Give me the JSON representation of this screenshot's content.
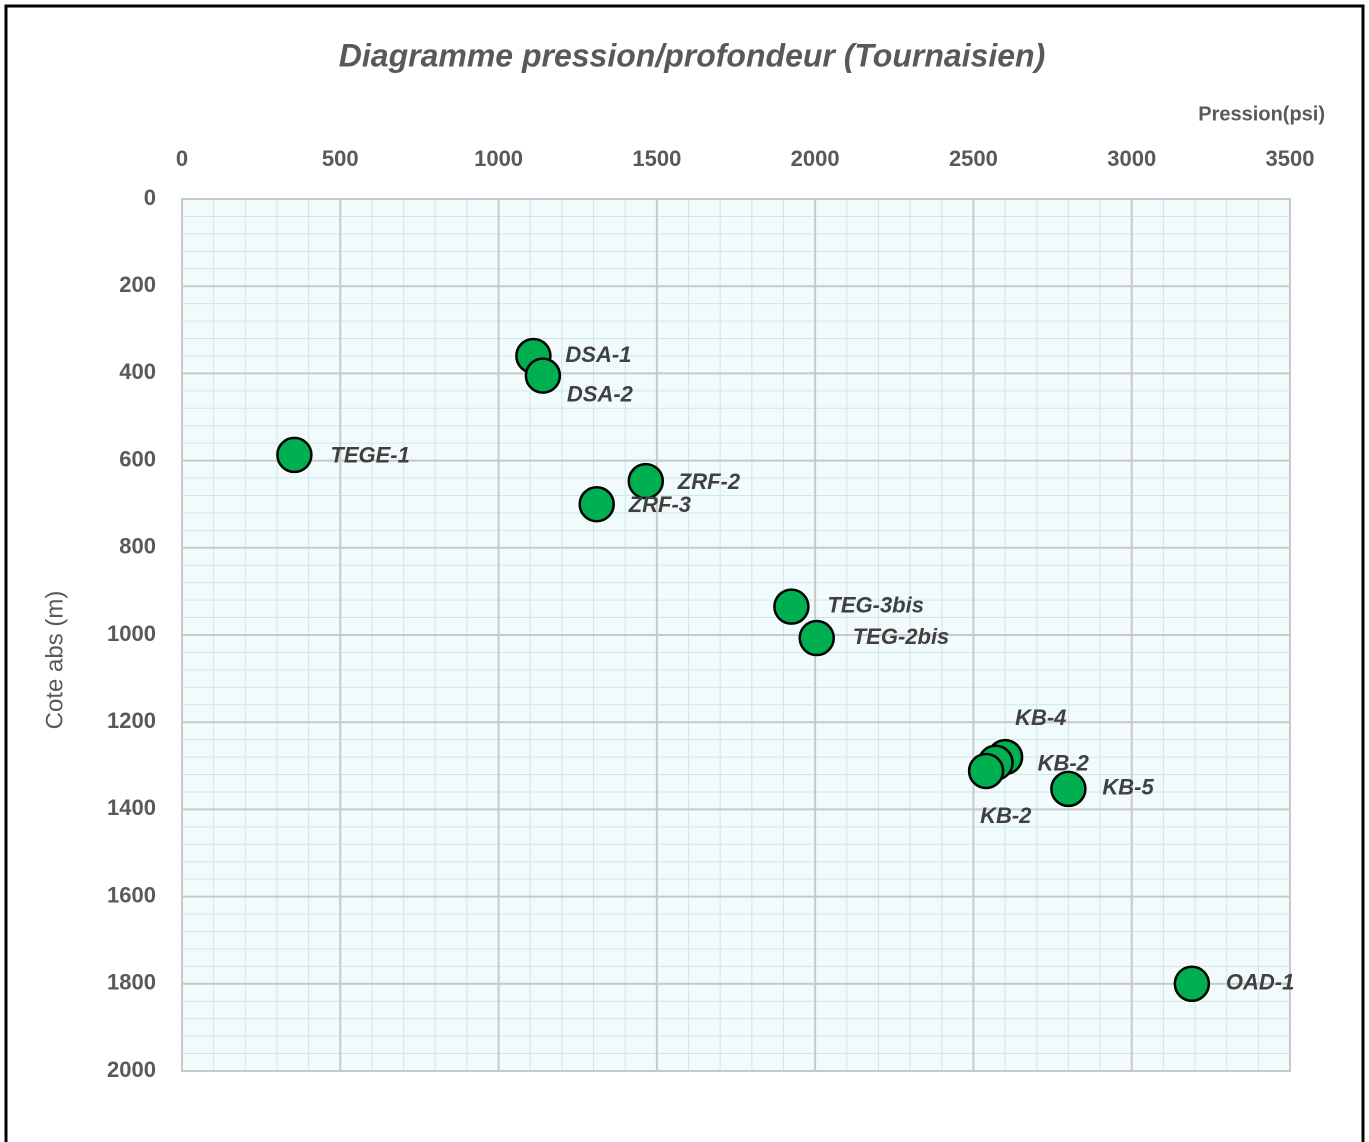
{
  "chart_data": {
    "type": "scatter",
    "title": "Diagramme pression/profondeur  (Tournaisien)",
    "x_label": "Pression(psi)",
    "y_label": "Cote abs (m)",
    "x_axis_position": "top",
    "y_inverted": true,
    "grid": true,
    "series": [
      {
        "name": "Puits",
        "color": "#00b050",
        "labels": [
          "DSA-1",
          "DSA-2",
          "TEGE-1",
          "ZRF-2",
          "ZRF-3",
          "TEG-3bis",
          "TEG-2bis",
          "KB-4",
          "KB-2",
          "KB-2",
          "KB-5",
          "OAD-1"
        ],
        "x": [
          1110,
          1140,
          355,
          1465,
          1310,
          1925,
          2005,
          2600,
          2570,
          2540,
          2800,
          3190
        ],
        "values": [
          360,
          405,
          587,
          647,
          700,
          935,
          1007,
          1280,
          1293,
          1312,
          1353,
          1800
        ]
      }
    ],
    "xlim": [
      0,
      3500
    ],
    "xticks": [
      0,
      500,
      1000,
      1500,
      2000,
      2500,
      3000,
      3500
    ],
    "ylim": [
      0,
      2000
    ],
    "yticks": [
      0,
      200,
      400,
      600,
      800,
      1000,
      1200,
      1400,
      1600,
      1800,
      2000
    ]
  }
}
